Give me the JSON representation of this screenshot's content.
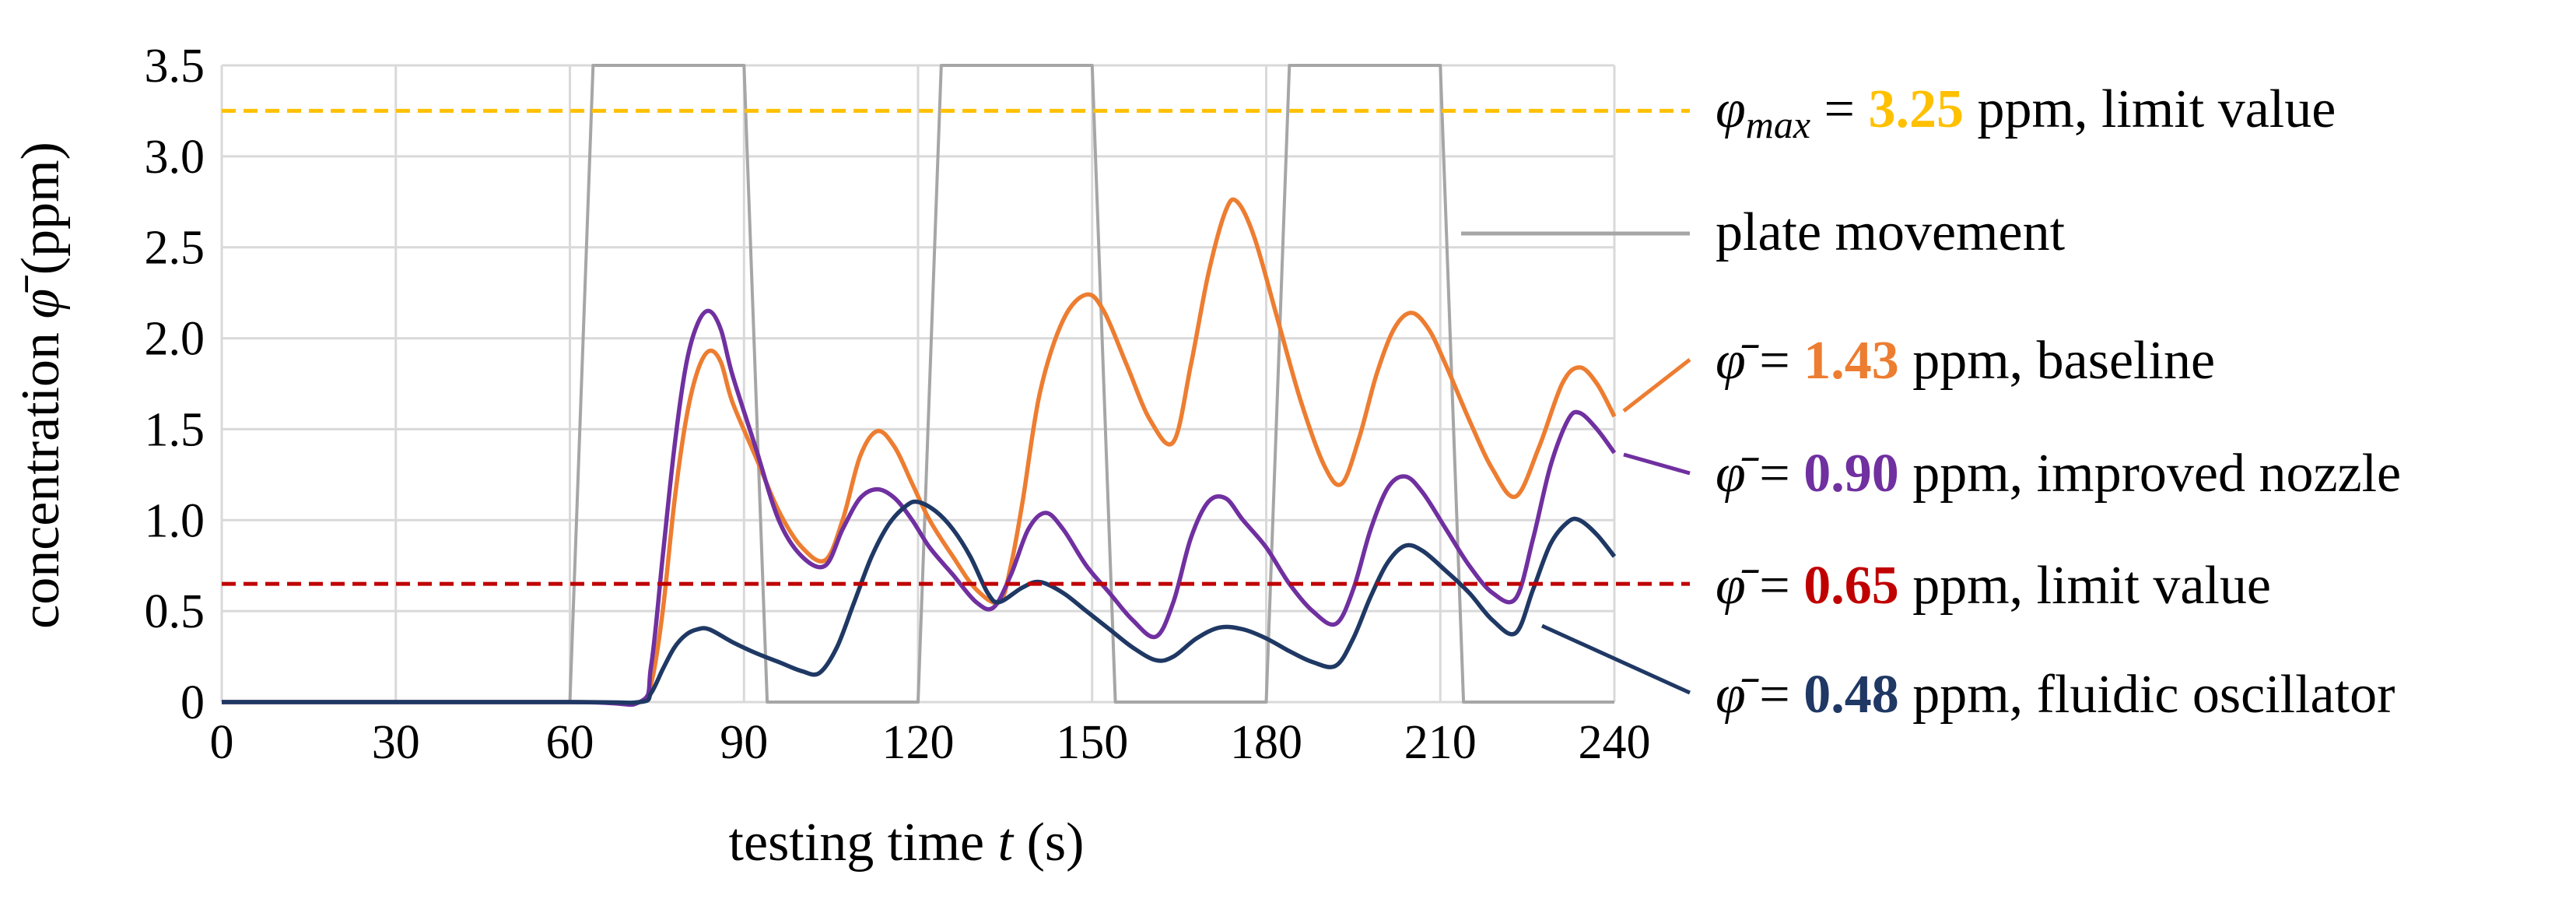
{
  "chart_data": {
    "type": "line",
    "xlabel_pre": "testing time ",
    "xlabel_var": "t",
    "xlabel_post": " (s)",
    "ylabel_pre": "concentration ",
    "ylabel_var": "φ̄",
    "ylabel_post": " (ppm)",
    "xlim": [
      0,
      240
    ],
    "ylim": [
      0,
      3.5
    ],
    "x_ticks": [
      0,
      30,
      60,
      90,
      120,
      150,
      180,
      210,
      240
    ],
    "y_ticks": [
      0,
      0.5,
      1.0,
      1.5,
      2.0,
      2.5,
      3.0,
      3.5
    ],
    "y_tick_labels": [
      "0",
      "0.5",
      "1.0",
      "1.5",
      "2.0",
      "2.5",
      "3.0",
      "3.5"
    ],
    "grid": true,
    "series": [
      {
        "name": "plate movement",
        "color": "#a6a6a6",
        "style": "solid",
        "points": [
          [
            0,
            0
          ],
          [
            60,
            0
          ],
          [
            64,
            3.5
          ],
          [
            90,
            3.5
          ],
          [
            94,
            0
          ],
          [
            120,
            0
          ],
          [
            124,
            3.5
          ],
          [
            150,
            3.5
          ],
          [
            154,
            0
          ],
          [
            180,
            0
          ],
          [
            184,
            3.5
          ],
          [
            210,
            3.5
          ],
          [
            214,
            0
          ],
          [
            240,
            0
          ]
        ]
      },
      {
        "name": "baseline",
        "color": "#ed7d31",
        "style": "solid",
        "points": [
          [
            0,
            0
          ],
          [
            60,
            0
          ],
          [
            72,
            0
          ],
          [
            74,
            0.1
          ],
          [
            76,
            0.5
          ],
          [
            78,
            1.1
          ],
          [
            80,
            1.55
          ],
          [
            82,
            1.82
          ],
          [
            84,
            1.93
          ],
          [
            86,
            1.87
          ],
          [
            88,
            1.65
          ],
          [
            92,
            1.35
          ],
          [
            96,
            1.05
          ],
          [
            100,
            0.85
          ],
          [
            104,
            0.78
          ],
          [
            107,
            1.0
          ],
          [
            110,
            1.35
          ],
          [
            113,
            1.49
          ],
          [
            116,
            1.4
          ],
          [
            119,
            1.2
          ],
          [
            122,
            1.0
          ],
          [
            126,
            0.8
          ],
          [
            130,
            0.62
          ],
          [
            134,
            0.55
          ],
          [
            136,
            0.75
          ],
          [
            138,
            1.1
          ],
          [
            141,
            1.7
          ],
          [
            145,
            2.1
          ],
          [
            149,
            2.24
          ],
          [
            152,
            2.15
          ],
          [
            156,
            1.85
          ],
          [
            160,
            1.55
          ],
          [
            164,
            1.43
          ],
          [
            167,
            1.85
          ],
          [
            170,
            2.35
          ],
          [
            173,
            2.7
          ],
          [
            175,
            2.75
          ],
          [
            178,
            2.55
          ],
          [
            182,
            2.1
          ],
          [
            186,
            1.65
          ],
          [
            190,
            1.3
          ],
          [
            193,
            1.2
          ],
          [
            196,
            1.45
          ],
          [
            199,
            1.8
          ],
          [
            202,
            2.05
          ],
          [
            205,
            2.14
          ],
          [
            208,
            2.05
          ],
          [
            211,
            1.85
          ],
          [
            215,
            1.55
          ],
          [
            219,
            1.28
          ],
          [
            223,
            1.13
          ],
          [
            227,
            1.4
          ],
          [
            231,
            1.75
          ],
          [
            234,
            1.84
          ],
          [
            237,
            1.75
          ],
          [
            240,
            1.57
          ]
        ]
      },
      {
        "name": "improved nozzle",
        "color": "#7030a0",
        "style": "solid",
        "points": [
          [
            0,
            0
          ],
          [
            60,
            0
          ],
          [
            72,
            0
          ],
          [
            74,
            0.2
          ],
          [
            76,
            0.8
          ],
          [
            78,
            1.4
          ],
          [
            80,
            1.85
          ],
          [
            82,
            2.08
          ],
          [
            84,
            2.15
          ],
          [
            86,
            2.05
          ],
          [
            88,
            1.8
          ],
          [
            92,
            1.4
          ],
          [
            96,
            1.0
          ],
          [
            100,
            0.8
          ],
          [
            104,
            0.75
          ],
          [
            107,
            0.95
          ],
          [
            110,
            1.12
          ],
          [
            113,
            1.17
          ],
          [
            116,
            1.12
          ],
          [
            119,
            1.0
          ],
          [
            122,
            0.85
          ],
          [
            126,
            0.7
          ],
          [
            130,
            0.55
          ],
          [
            133,
            0.52
          ],
          [
            136,
            0.7
          ],
          [
            139,
            0.95
          ],
          [
            142,
            1.04
          ],
          [
            145,
            0.95
          ],
          [
            149,
            0.75
          ],
          [
            153,
            0.6
          ],
          [
            157,
            0.45
          ],
          [
            161,
            0.36
          ],
          [
            164,
            0.55
          ],
          [
            167,
            0.9
          ],
          [
            170,
            1.1
          ],
          [
            173,
            1.12
          ],
          [
            176,
            1.0
          ],
          [
            180,
            0.85
          ],
          [
            184,
            0.65
          ],
          [
            188,
            0.5
          ],
          [
            192,
            0.43
          ],
          [
            195,
            0.62
          ],
          [
            198,
            0.95
          ],
          [
            201,
            1.18
          ],
          [
            204,
            1.24
          ],
          [
            207,
            1.15
          ],
          [
            211,
            0.95
          ],
          [
            215,
            0.75
          ],
          [
            219,
            0.6
          ],
          [
            223,
            0.57
          ],
          [
            226,
            0.9
          ],
          [
            229,
            1.3
          ],
          [
            232,
            1.55
          ],
          [
            234,
            1.59
          ],
          [
            237,
            1.5
          ],
          [
            240,
            1.37
          ]
        ]
      },
      {
        "name": "fluidic oscillator",
        "color": "#1f3864",
        "style": "solid",
        "points": [
          [
            0,
            0
          ],
          [
            60,
            0
          ],
          [
            72,
            0
          ],
          [
            74,
            0.05
          ],
          [
            76,
            0.18
          ],
          [
            78,
            0.3
          ],
          [
            80,
            0.37
          ],
          [
            82,
            0.4
          ],
          [
            84,
            0.4
          ],
          [
            88,
            0.33
          ],
          [
            92,
            0.27
          ],
          [
            96,
            0.22
          ],
          [
            100,
            0.17
          ],
          [
            103,
            0.16
          ],
          [
            106,
            0.3
          ],
          [
            109,
            0.55
          ],
          [
            112,
            0.8
          ],
          [
            115,
            0.98
          ],
          [
            118,
            1.08
          ],
          [
            120,
            1.1
          ],
          [
            123,
            1.05
          ],
          [
            126,
            0.95
          ],
          [
            129,
            0.8
          ],
          [
            132,
            0.6
          ],
          [
            134,
            0.55
          ],
          [
            138,
            0.63
          ],
          [
            141,
            0.66
          ],
          [
            145,
            0.6
          ],
          [
            149,
            0.5
          ],
          [
            153,
            0.4
          ],
          [
            157,
            0.3
          ],
          [
            161,
            0.23
          ],
          [
            164,
            0.25
          ],
          [
            168,
            0.35
          ],
          [
            172,
            0.41
          ],
          [
            176,
            0.4
          ],
          [
            180,
            0.35
          ],
          [
            184,
            0.28
          ],
          [
            188,
            0.22
          ],
          [
            192,
            0.2
          ],
          [
            195,
            0.35
          ],
          [
            198,
            0.58
          ],
          [
            201,
            0.77
          ],
          [
            204,
            0.86
          ],
          [
            207,
            0.83
          ],
          [
            211,
            0.72
          ],
          [
            215,
            0.6
          ],
          [
            219,
            0.45
          ],
          [
            223,
            0.38
          ],
          [
            226,
            0.62
          ],
          [
            229,
            0.87
          ],
          [
            232,
            0.99
          ],
          [
            234,
            1.0
          ],
          [
            237,
            0.92
          ],
          [
            240,
            0.8
          ]
        ]
      },
      {
        "name": "limit value 3.25",
        "color": "#ffc000",
        "style": "dashed",
        "points": [
          [
            0,
            3.25
          ],
          [
            253,
            3.25
          ]
        ]
      },
      {
        "name": "limit value 0.65",
        "color": "#c00000",
        "style": "dashed",
        "points": [
          [
            0,
            0.65
          ],
          [
            253,
            0.65
          ]
        ]
      }
    ],
    "legend": [
      {
        "id": "phimax",
        "symbol": "φ",
        "subscript": "max",
        "eq": " = ",
        "value": "3.25",
        "suffix": " ppm, limit value",
        "color": "#ffc000"
      },
      {
        "id": "plate",
        "text": "plate movement",
        "color": "#a6a6a6"
      },
      {
        "id": "baseline",
        "symbol": "φ̄",
        "eq": " = ",
        "value": "1.43",
        "suffix": " ppm, baseline",
        "color": "#ed7d31"
      },
      {
        "id": "nozzle",
        "symbol": "φ̄",
        "eq": " = ",
        "value": "0.90",
        "suffix": " ppm, improved nozzle",
        "color": "#7030a0"
      },
      {
        "id": "limit",
        "symbol": "φ̄",
        "eq": " = ",
        "value": "0.65",
        "suffix": " ppm, limit value",
        "color": "#c00000"
      },
      {
        "id": "fluidic",
        "symbol": "φ̄",
        "eq": " = ",
        "value": "0.48",
        "suffix": " ppm, fluidic oscillator",
        "color": "#1f3864"
      }
    ]
  }
}
